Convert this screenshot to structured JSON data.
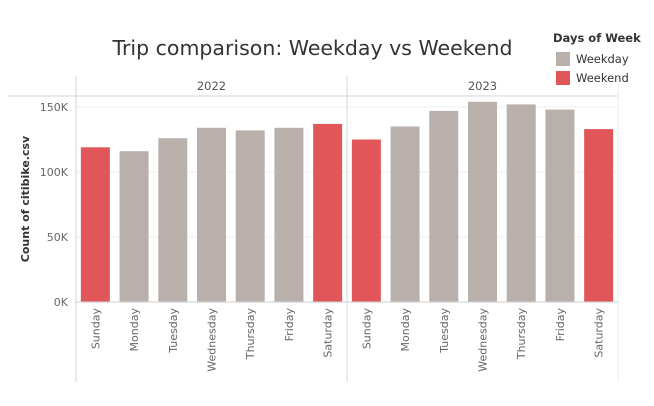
{
  "chart_data": {
    "type": "bar",
    "title": "Trip comparison: Weekday vs Weekend",
    "ylabel": "Count of citibike.csv",
    "ylim": [
      0,
      160000
    ],
    "yticks": [
      0,
      50000,
      100000,
      150000
    ],
    "ytick_labels": [
      "0K",
      "50K",
      "100K",
      "150K"
    ],
    "grid": true,
    "legend": {
      "title": "Days of Week",
      "placement": "top-right",
      "items": [
        {
          "label": "Weekday",
          "color": "#b9b0ab"
        },
        {
          "label": "Weekend",
          "color": "#e15759"
        }
      ]
    },
    "categories": [
      "Sunday",
      "Monday",
      "Tuesday",
      "Wednesday",
      "Thursday",
      "Friday",
      "Saturday"
    ],
    "panels": [
      {
        "label": "2022",
        "values": [
          119000,
          116000,
          126000,
          134000,
          132000,
          134000,
          137000
        ],
        "groups": [
          "Weekend",
          "Weekday",
          "Weekday",
          "Weekday",
          "Weekday",
          "Weekday",
          "Weekend"
        ]
      },
      {
        "label": "2023",
        "values": [
          125000,
          135000,
          147000,
          154000,
          152000,
          148000,
          133000
        ],
        "groups": [
          "Weekend",
          "Weekday",
          "Weekday",
          "Weekday",
          "Weekday",
          "Weekday",
          "Weekend"
        ]
      }
    ]
  }
}
